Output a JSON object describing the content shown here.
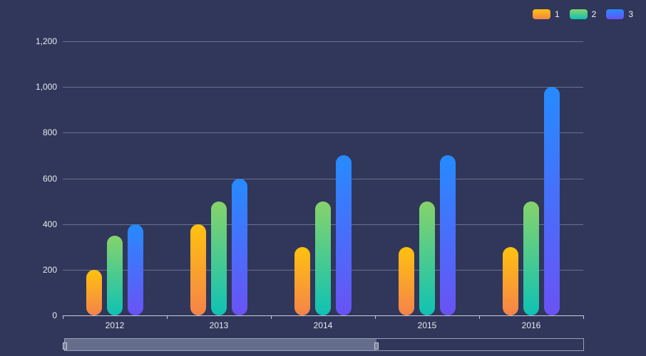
{
  "chart_data": {
    "type": "bar",
    "title": "",
    "xlabel": "",
    "ylabel": "",
    "categories": [
      "2012",
      "2013",
      "2014",
      "2015",
      "2016"
    ],
    "series": [
      {
        "name": "1",
        "values": [
          200,
          400,
          300,
          300,
          300
        ],
        "gradient": [
          "#ffc20e",
          "#f5834a"
        ]
      },
      {
        "name": "2",
        "values": [
          350,
          500,
          500,
          500,
          500
        ],
        "gradient": [
          "#86d36b",
          "#0fc2b4"
        ]
      },
      {
        "name": "3",
        "values": [
          400,
          600,
          700,
          700,
          1000
        ],
        "gradient": [
          "#268bff",
          "#6a52f5"
        ]
      }
    ],
    "ylim": [
      0,
      1200
    ],
    "yticks": [
      "0",
      "200",
      "400",
      "600",
      "800",
      "1,000",
      "1,200"
    ],
    "grid": true,
    "legend_position": "top-right",
    "datazoom": {
      "start_percent": 0,
      "end_percent": 60
    }
  },
  "legend": [
    {
      "label": "1"
    },
    {
      "label": "2"
    },
    {
      "label": "3"
    }
  ]
}
